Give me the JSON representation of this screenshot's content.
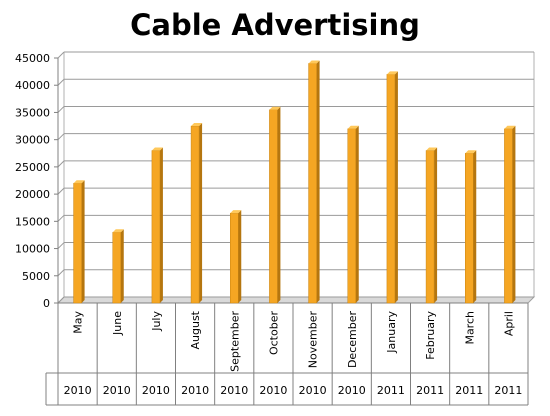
{
  "chart_data": {
    "type": "bar",
    "title": "Cable Advertising",
    "categories": [
      "May",
      "June",
      "July",
      "August",
      "September",
      "October",
      "November",
      "December",
      "January",
      "February",
      "March",
      "April"
    ],
    "years": [
      "2010",
      "2010",
      "2010",
      "2010",
      "2010",
      "2010",
      "2010",
      "2010",
      "2011",
      "2011",
      "2011",
      "2011"
    ],
    "values": [
      22000,
      13000,
      28000,
      32500,
      16500,
      35500,
      44000,
      32000,
      42000,
      28000,
      27500,
      32000
    ],
    "ylim": [
      0,
      45000
    ],
    "yticks": [
      "0",
      "5000",
      "10000",
      "15000",
      "20000",
      "25000",
      "30000",
      "35000",
      "40000",
      "45000"
    ],
    "xlabel": "",
    "ylabel": "",
    "grid": true,
    "bar_color": "#F5A623"
  }
}
